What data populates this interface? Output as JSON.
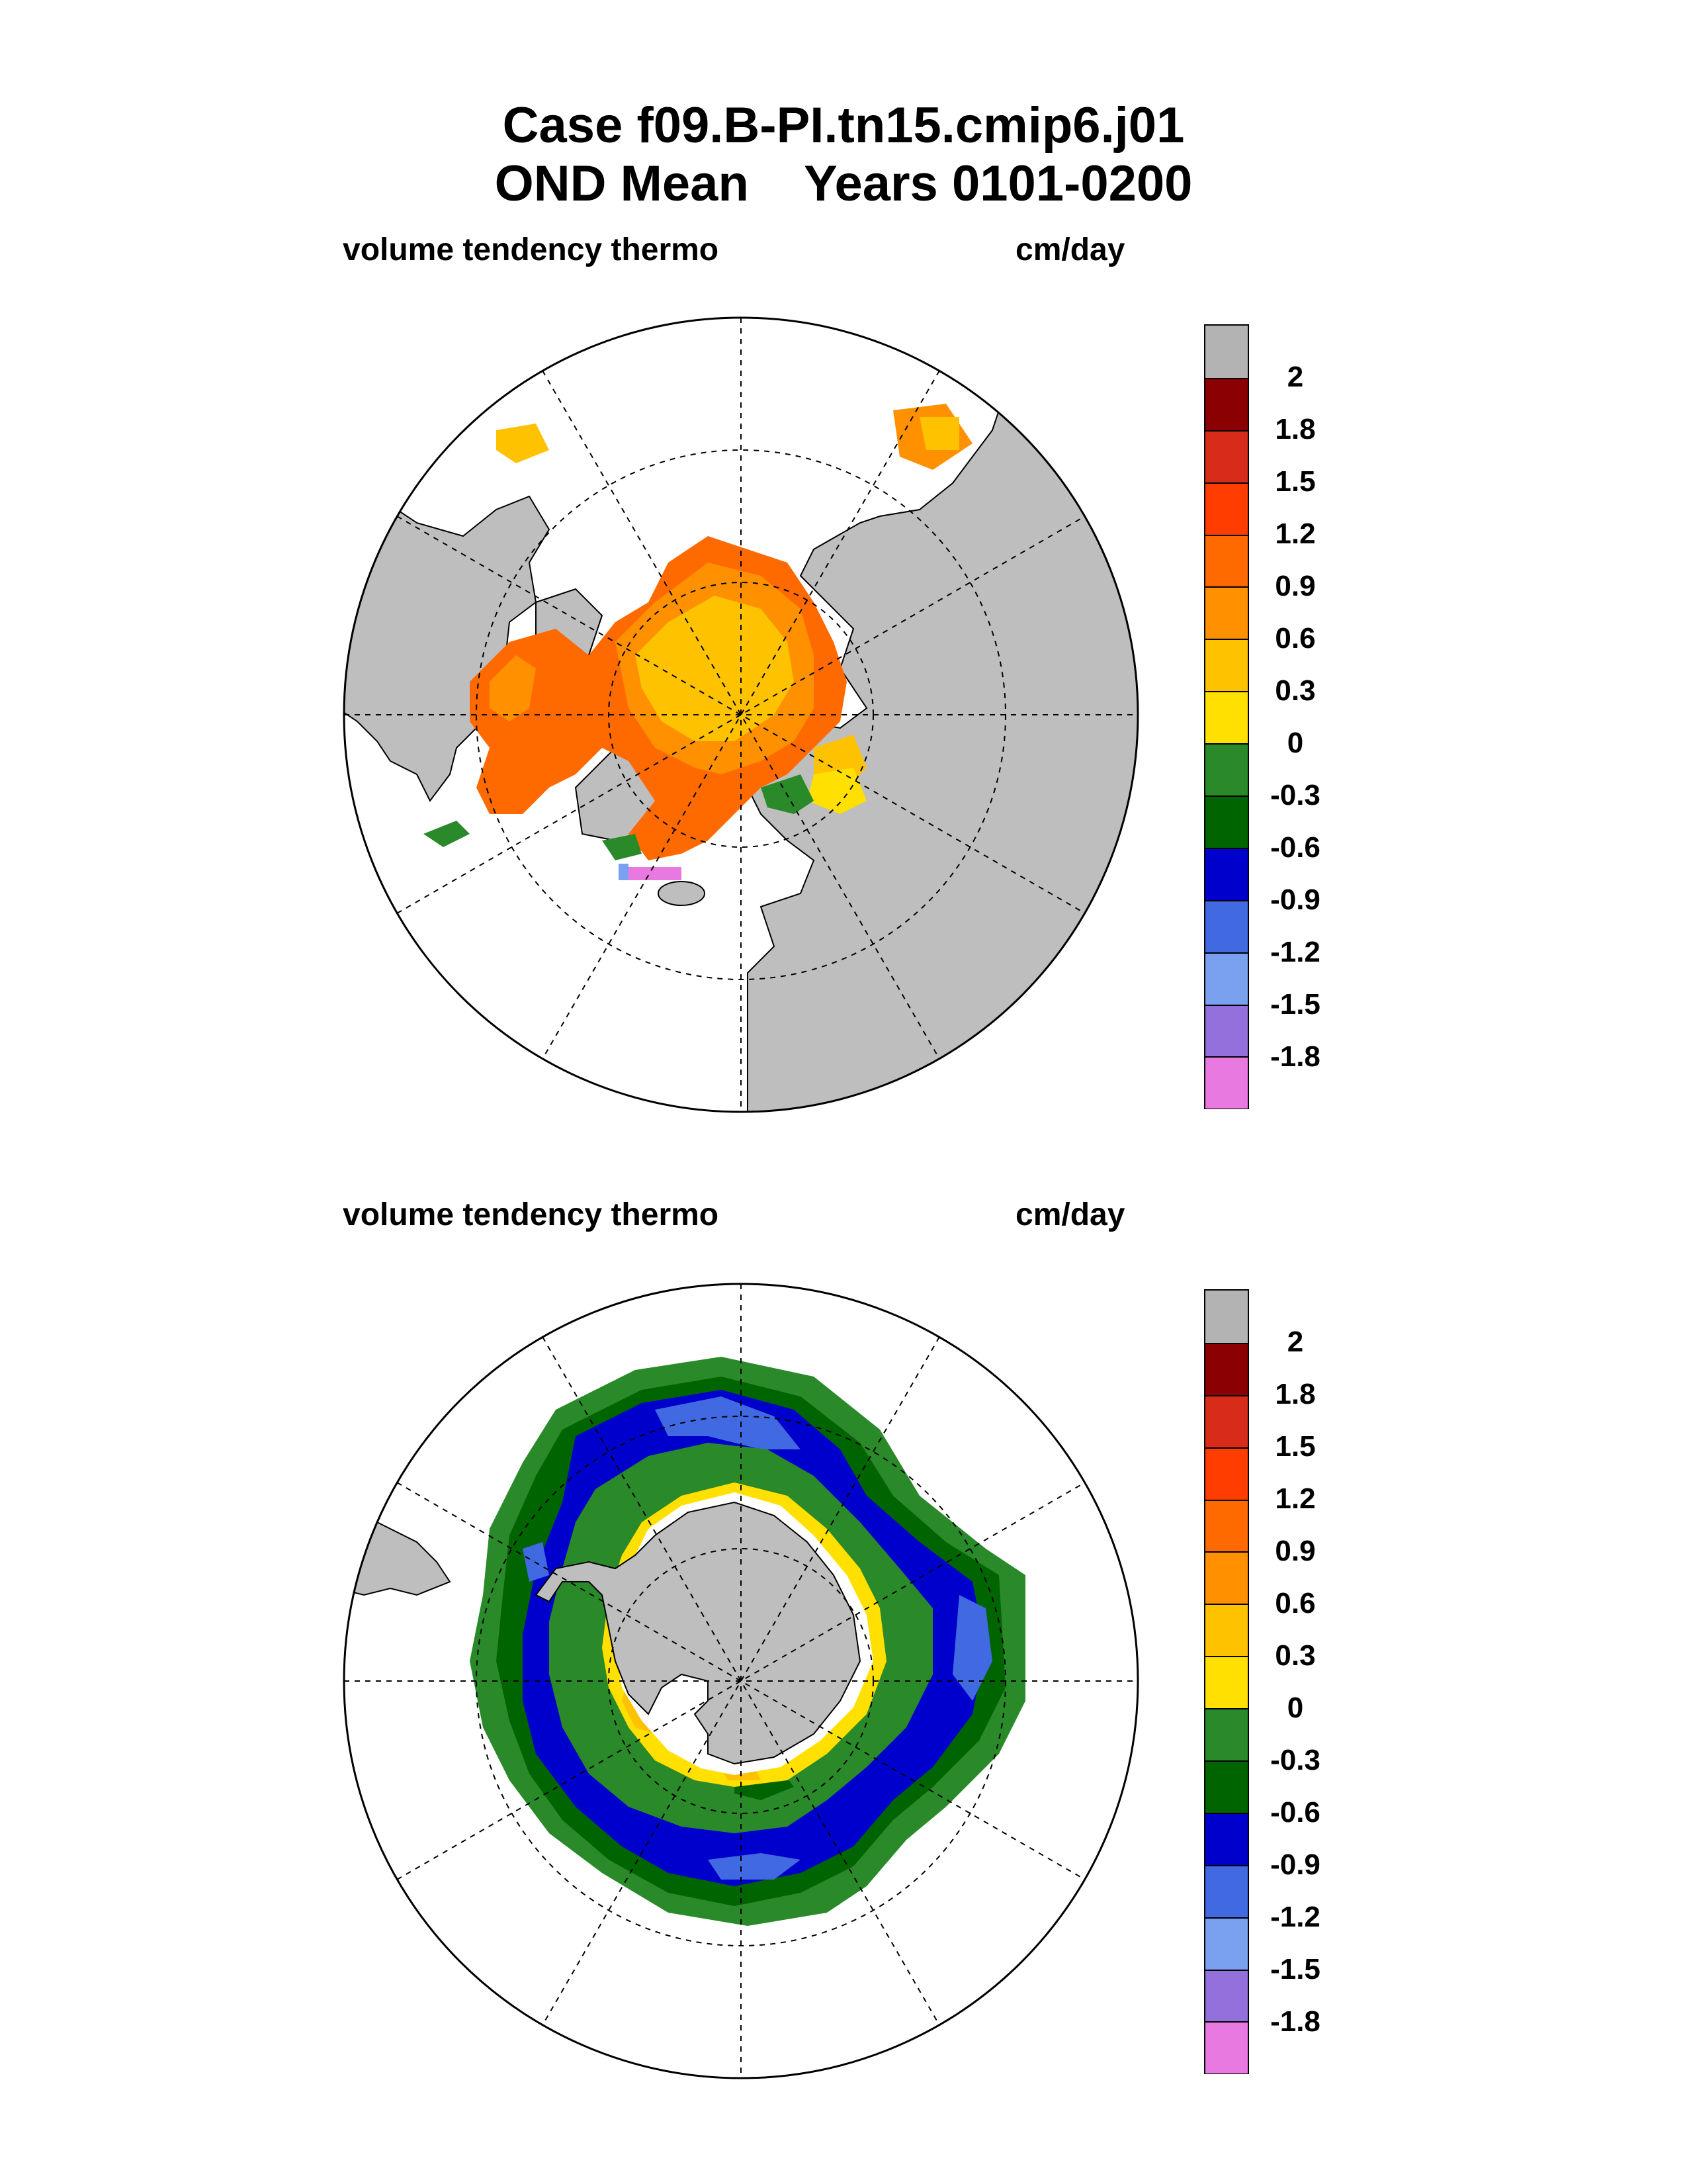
{
  "title": {
    "line1": "Case f09.B-PI.tn15.cmip6.j01",
    "line2": "OND Mean    Years 0101-0200"
  },
  "panels": [
    {
      "id": "north",
      "variable": "volume tendency thermo",
      "units": "cm/day",
      "hemisphere": "north"
    },
    {
      "id": "south",
      "variable": "volume tendency thermo",
      "units": "cm/day",
      "hemisphere": "south"
    }
  ],
  "colorbar": {
    "colors": [
      "#b3b3b3",
      "#8b0000",
      "#d92b1a",
      "#ff3d00",
      "#ff6a00",
      "#ff9100",
      "#ffc200",
      "#ffe000",
      "#2a8a2a",
      "#006400",
      "#0000cc",
      "#4169e1",
      "#7aa0f0",
      "#9370db",
      "#e879e0"
    ],
    "tick_labels": [
      "2",
      "1.8",
      "1.5",
      "1.2",
      "0.9",
      "0.6",
      "0.3",
      "0",
      "-0.3",
      "-0.6",
      "-0.9",
      "-1.2",
      "-1.5",
      "-1.8"
    ]
  },
  "colors": {
    "land": "#bebebe",
    "ocean": "#ffffff"
  }
}
